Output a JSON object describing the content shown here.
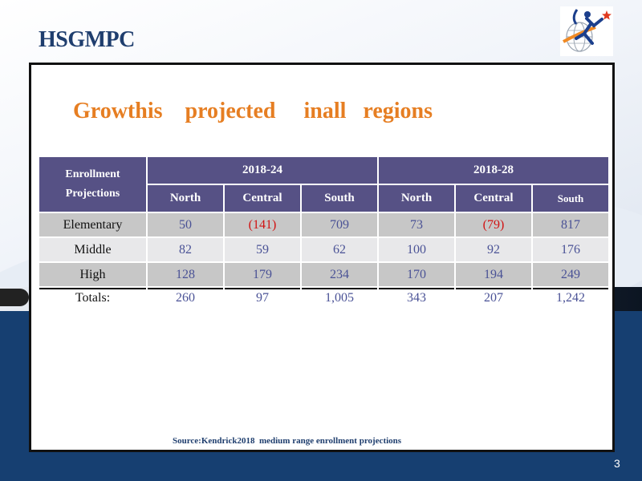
{
  "brand": "HSGMPC",
  "title": "Growthis    projected     inall   regions",
  "table": {
    "corner_header": [
      "Enrollment",
      "Projections"
    ],
    "periods": [
      "2018-24",
      "2018-28"
    ],
    "regions_a": [
      "North",
      "Central",
      "South"
    ],
    "regions_b": [
      "North",
      "Central",
      "South"
    ],
    "rows": [
      {
        "label": "Elementary",
        "values": [
          "50",
          "(141)",
          "709",
          "73",
          "(79)",
          "817"
        ]
      },
      {
        "label": "Middle",
        "values": [
          "82",
          "59",
          "62",
          "100",
          "92",
          "176"
        ]
      },
      {
        "label": "High",
        "values": [
          "128",
          "179",
          "234",
          "170",
          "194",
          "249"
        ]
      },
      {
        "label": "Totals:",
        "values": [
          "260",
          "97",
          "1,005",
          "343",
          "207",
          "1,242"
        ]
      }
    ]
  },
  "source": "Source:Kendrick2018  medium range enrollment projections",
  "page_number": "3",
  "colors": {
    "header_bg": "#565185",
    "title": "#e67e22",
    "negative": "#d11313",
    "value_text": "#4a5296",
    "brand": "#1f3e6e",
    "footer_bg": "#163f71"
  }
}
